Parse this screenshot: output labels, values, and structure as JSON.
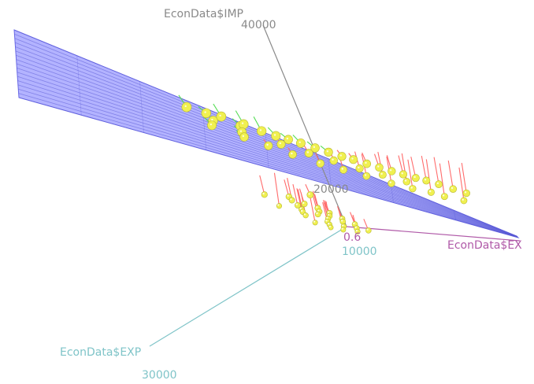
{
  "chart_data": {
    "type": "scatter",
    "title": "",
    "axes": {
      "x": {
        "label": "EconData$EXP",
        "ticks": [
          "10000",
          "30000"
        ],
        "color": "#7fc4c8"
      },
      "y": {
        "label": "EconData$IMP",
        "ticks": [
          "20000",
          "40000"
        ],
        "color": "#8a8a8a"
      },
      "z": {
        "label": "EconData$EX",
        "ticks": [
          "0.6"
        ],
        "color": "#b05aa8"
      }
    },
    "fit_surface": {
      "type": "plane",
      "color": "#8080ff",
      "opacity": 0.6
    },
    "residual_colors": {
      "above": "#55dd55",
      "below": "#ff6b6b"
    },
    "point_color": "#f0f050",
    "points": [
      [
        17500,
        33000,
        0.86
      ],
      [
        19000,
        32000,
        0.84
      ],
      [
        18000,
        30500,
        0.83
      ],
      [
        20500,
        31500,
        0.85
      ],
      [
        21000,
        29800,
        0.82
      ],
      [
        22000,
        30200,
        0.84
      ],
      [
        19500,
        28500,
        0.8
      ],
      [
        23000,
        29000,
        0.83
      ],
      [
        24000,
        28200,
        0.81
      ],
      [
        25000,
        27600,
        0.79
      ],
      [
        26000,
        27000,
        0.8
      ],
      [
        22500,
        26500,
        0.76
      ],
      [
        27000,
        26200,
        0.78
      ],
      [
        28000,
        25500,
        0.77
      ],
      [
        24500,
        25000,
        0.74
      ],
      [
        29000,
        24800,
        0.76
      ],
      [
        30000,
        24300,
        0.75
      ],
      [
        26500,
        23800,
        0.72
      ],
      [
        31000,
        23600,
        0.73
      ],
      [
        32000,
        23000,
        0.72
      ],
      [
        28500,
        22500,
        0.7
      ],
      [
        33000,
        22400,
        0.71
      ],
      [
        34000,
        21900,
        0.7
      ],
      [
        30500,
        21500,
        0.68
      ],
      [
        35000,
        21300,
        0.69
      ],
      [
        36000,
        20900,
        0.68
      ],
      [
        32500,
        20400,
        0.66
      ],
      [
        37000,
        20300,
        0.67
      ],
      [
        27500,
        21000,
        0.67
      ],
      [
        29500,
        19800,
        0.65
      ],
      [
        31500,
        19000,
        0.64
      ],
      [
        33500,
        18500,
        0.63
      ],
      [
        20000,
        26000,
        0.75
      ],
      [
        21500,
        24500,
        0.73
      ],
      [
        23500,
        23000,
        0.71
      ],
      [
        25500,
        22000,
        0.69
      ],
      [
        18500,
        27500,
        0.78
      ],
      [
        16500,
        29500,
        0.81
      ],
      [
        34500,
        17800,
        0.62
      ],
      [
        36500,
        17200,
        0.61
      ],
      [
        38000,
        19500,
        0.66
      ],
      [
        39000,
        18800,
        0.65
      ],
      [
        9000,
        15500,
        0.58
      ],
      [
        8500,
        14800,
        0.56
      ],
      [
        9500,
        14200,
        0.57
      ],
      [
        8000,
        13800,
        0.55
      ],
      [
        10500,
        13500,
        0.56
      ],
      [
        7500,
        13000,
        0.54
      ],
      [
        9800,
        12800,
        0.55
      ],
      [
        11000,
        12600,
        0.56
      ],
      [
        8800,
        12200,
        0.54
      ],
      [
        10200,
        12000,
        0.55
      ],
      [
        7000,
        12500,
        0.53
      ],
      [
        11500,
        11600,
        0.55
      ],
      [
        9200,
        11400,
        0.53
      ],
      [
        6500,
        11800,
        0.52
      ],
      [
        10800,
        11000,
        0.54
      ],
      [
        8300,
        10800,
        0.52
      ],
      [
        12000,
        10600,
        0.54
      ],
      [
        7800,
        10200,
        0.51
      ],
      [
        9600,
        10000,
        0.52
      ],
      [
        11200,
        9800,
        0.53
      ],
      [
        6000,
        10400,
        0.5
      ],
      [
        12500,
        9500,
        0.53
      ],
      [
        8600,
        9300,
        0.5
      ],
      [
        10400,
        9100,
        0.51
      ],
      [
        7200,
        9600,
        0.49
      ],
      [
        5600,
        15600,
        0.57
      ],
      [
        13000,
        16200,
        0.61
      ],
      [
        4800,
        13400,
        0.51
      ]
    ]
  }
}
